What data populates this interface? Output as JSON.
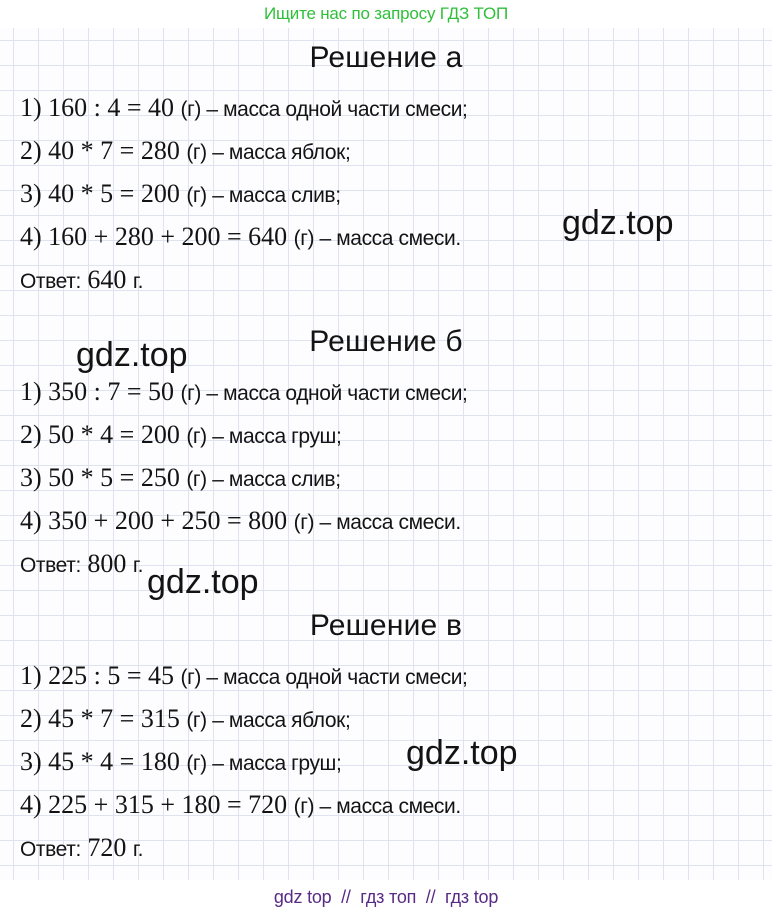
{
  "header": {
    "text": "Ищите нас по запросу ГДЗ ТОП"
  },
  "watermark": {
    "text": "gdz.top"
  },
  "footer": {
    "text": "gdz top  //  гдз топ  //  гдз top"
  },
  "colors": {
    "accent_green": "#2fbf3a",
    "accent_purple": "#582b85",
    "grid": "#dfe3f0",
    "text": "#131313"
  },
  "sections": [
    {
      "title": "Решение а",
      "lines": [
        {
          "math": "1) 160 : 4 = 40",
          "rest": "(г) – масса одной части смеси;"
        },
        {
          "math": "2) 40 * 7 = 280",
          "rest": "(г) – масса яблок;"
        },
        {
          "math": "3) 40 * 5 = 200",
          "rest": "(г) – масса слив;"
        },
        {
          "math": "4) 160 + 280 + 200 = 640",
          "rest": "(г) – масса смеси."
        }
      ],
      "answer": {
        "label": "Ответ:",
        "value": "640",
        "unit": "г."
      }
    },
    {
      "title": "Решение б",
      "lines": [
        {
          "math": "1) 350 : 7 = 50",
          "rest": "(г) – масса одной части смеси;"
        },
        {
          "math": "2) 50 * 4 = 200",
          "rest": "(г) – масса груш;"
        },
        {
          "math": "3) 50 * 5 = 250",
          "rest": "(г) – масса слив;"
        },
        {
          "math": "4) 350 + 200 + 250 = 800",
          "rest": "(г) – масса смеси."
        }
      ],
      "answer": {
        "label": "Ответ:",
        "value": "800",
        "unit": "г."
      }
    },
    {
      "title": "Решение в",
      "lines": [
        {
          "math": "1) 225 : 5 = 45",
          "rest": "(г) – масса одной части смеси;"
        },
        {
          "math": "2) 45 * 7 = 315",
          "rest": "(г) – масса яблок;"
        },
        {
          "math": "3) 45 * 4 = 180",
          "rest": "(г) – масса груш;"
        },
        {
          "math": "4) 225 + 315 + 180 = 720",
          "rest": "(г) – масса смеси."
        }
      ],
      "answer": {
        "label": "Ответ:",
        "value": "720",
        "unit": "г."
      }
    }
  ]
}
